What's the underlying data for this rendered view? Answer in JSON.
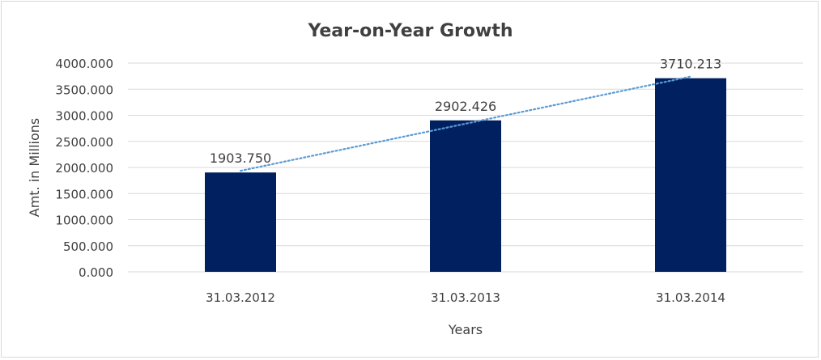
{
  "chart_data": {
    "type": "bar",
    "title": "Year-on-Year Growth",
    "xlabel": "Years",
    "ylabel": "Amt. in Millions",
    "categories": [
      "31.03.2012",
      "31.03.2013",
      "31.03.2014"
    ],
    "values": [
      1903.75,
      2902.426,
      3710.213
    ],
    "data_labels": [
      "1903.750",
      "2902.426",
      "3710.213"
    ],
    "ylim": [
      0,
      4000
    ],
    "yticks": [
      "0.000",
      "500.000",
      "1000.000",
      "1500.000",
      "2000.000",
      "2500.000",
      "3000.000",
      "3500.000",
      "4000.000"
    ],
    "grid": true,
    "trendline": "linear",
    "bar_color": "#002060",
    "trendline_color": "#5B9BD5",
    "legend": "none"
  }
}
